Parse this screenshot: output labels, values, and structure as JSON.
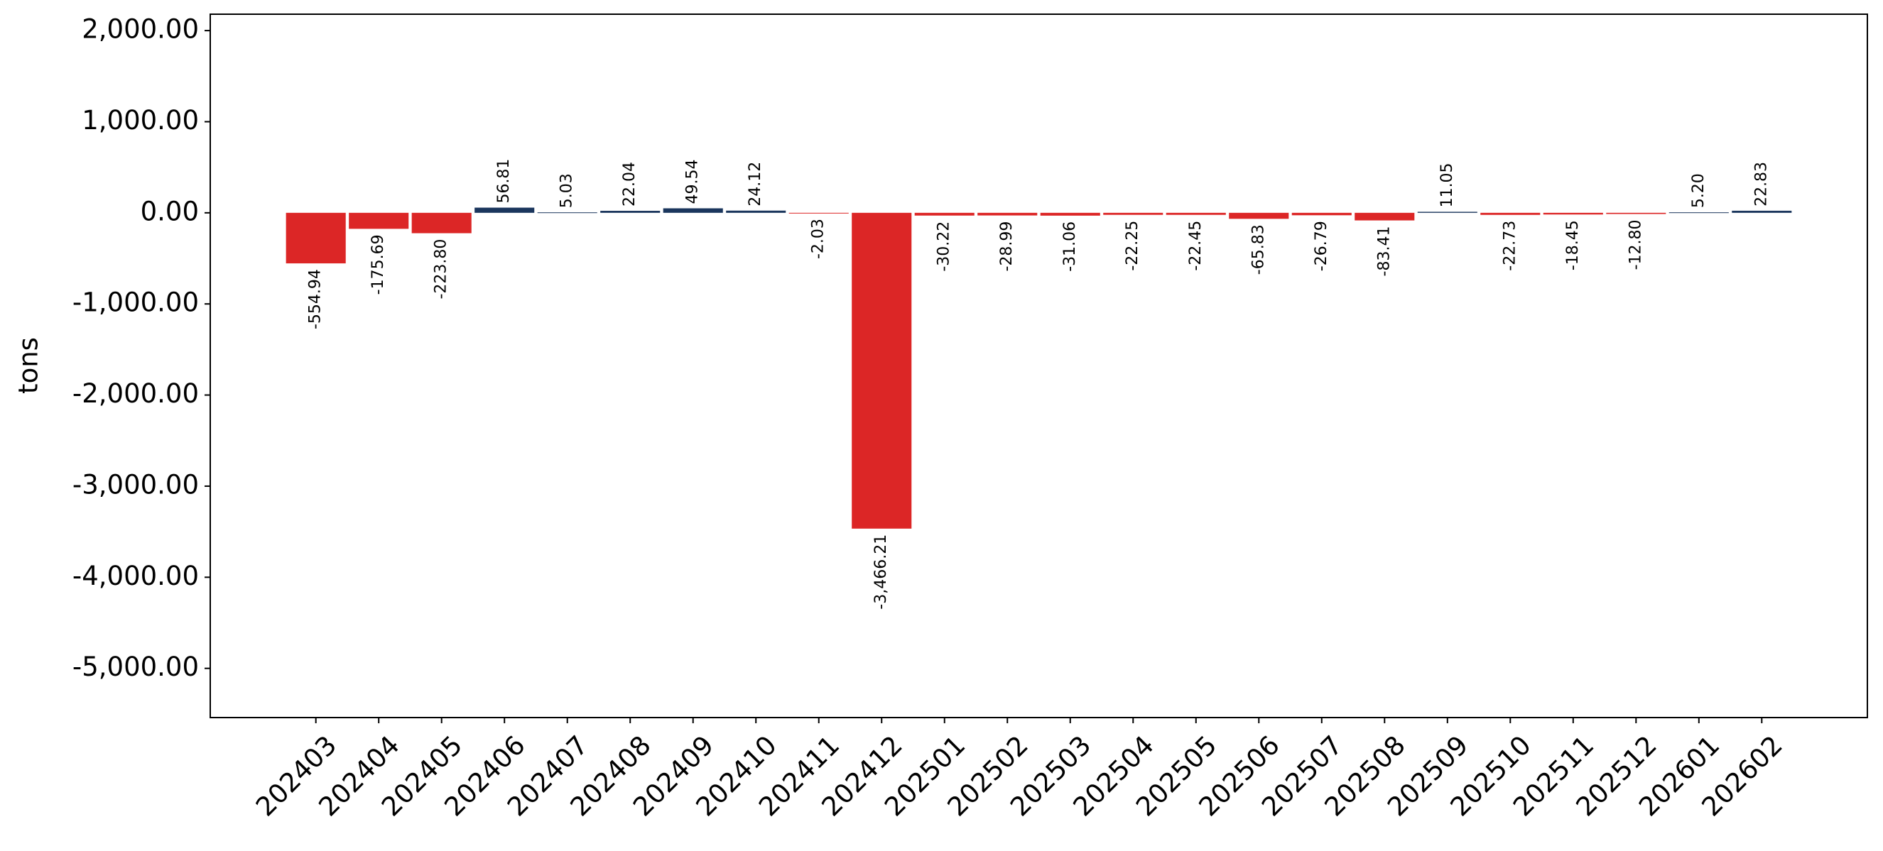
{
  "chart_data": {
    "type": "bar",
    "y_label": "tons",
    "categories": [
      "202403",
      "202404",
      "202405",
      "202406",
      "202407",
      "202408",
      "202409",
      "202410",
      "202411",
      "202412",
      "202501",
      "202502",
      "202503",
      "202504",
      "202505",
      "202506",
      "202507",
      "202508",
      "202509",
      "202510",
      "202511",
      "202512",
      "202601",
      "202602"
    ],
    "values": [
      -554.94,
      -175.69,
      -223.8,
      56.81,
      5.03,
      22.04,
      49.54,
      24.12,
      -2.03,
      -3466.21,
      -30.22,
      -28.99,
      -31.06,
      -22.25,
      -22.45,
      -65.83,
      -26.79,
      -83.41,
      11.05,
      -22.73,
      -18.45,
      -12.8,
      5.2,
      22.83
    ],
    "value_labels": [
      "-554.94",
      "-175.69",
      "-223.80",
      "56.81",
      "5.03",
      "22.04",
      "49.54",
      "24.12",
      "-2.03",
      "-3,466.21",
      "-30.22",
      "-28.99",
      "-31.06",
      "-22.25",
      "-22.45",
      "-65.83",
      "-26.79",
      "-83.41",
      "11.05",
      "-22.73",
      "-18.45",
      "-12.80",
      "5.20",
      "22.83"
    ],
    "color_positive": "#1b365d",
    "color_negative": "#dc2626",
    "ylim": [
      -5540,
      2180
    ],
    "yticks": [
      {
        "value": -5000,
        "label": "-5,000.00"
      },
      {
        "value": -4000,
        "label": "-4,000.00"
      },
      {
        "value": -3000,
        "label": "-3,000.00"
      },
      {
        "value": -2000,
        "label": "-2,000.00"
      },
      {
        "value": -1000,
        "label": "-1,000.00"
      },
      {
        "value": 0,
        "label": "0.00"
      },
      {
        "value": 1000,
        "label": "1,000.00"
      },
      {
        "value": 2000,
        "label": "2,000.00"
      }
    ],
    "grid": false
  }
}
